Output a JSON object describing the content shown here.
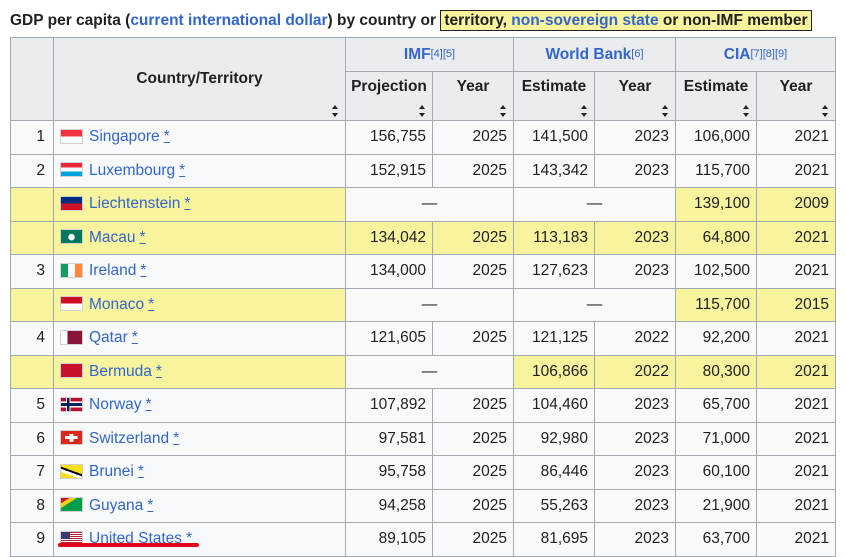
{
  "caption": {
    "prefix": "GDP per capita (",
    "link1": "current international dollar",
    "mid": ") by country or ",
    "box_text1": "territory, ",
    "box_link": "non-sovereign state",
    "box_text2": " or non-IMF member"
  },
  "headers": {
    "country": "Country/Territory",
    "imf": "IMF",
    "imf_refs": "[4][5]",
    "wb": "World Bank",
    "wb_refs": "[6]",
    "cia": "CIA",
    "cia_refs": "[7][8][9]",
    "projection": "Projection",
    "estimate": "Estimate",
    "year": "Year"
  },
  "colors": {
    "territory_highlight": "#f8f39d",
    "link": "#3366cc",
    "header_bg": "#eaecf0",
    "annotation_underline": "#e3001b"
  },
  "rows": [
    {
      "rank": "1",
      "country": "Singapore",
      "flag": "singapore-flag",
      "imf": "156,755",
      "imf_year": "2025",
      "wb": "141,500",
      "wb_year": "2023",
      "cia": "106,000",
      "cia_year": "2021"
    },
    {
      "rank": "2",
      "country": "Luxembourg",
      "flag": "luxembourg-flag",
      "imf": "152,915",
      "imf_year": "2025",
      "wb": "143,342",
      "wb_year": "2023",
      "cia": "115,700",
      "cia_year": "2021"
    },
    {
      "rank": "",
      "country": "Liechtenstein",
      "flag": "liechtenstein-flag",
      "imf": "—",
      "imf_year": "",
      "wb": "—",
      "wb_year": "",
      "cia": "139,100",
      "cia_year": "2009"
    },
    {
      "rank": "",
      "country": "Macau",
      "flag": "macau-flag",
      "imf": "134,042",
      "imf_year": "2025",
      "wb": "113,183",
      "wb_year": "2023",
      "cia": "64,800",
      "cia_year": "2021"
    },
    {
      "rank": "3",
      "country": "Ireland",
      "flag": "ireland-flag",
      "imf": "134,000",
      "imf_year": "2025",
      "wb": "127,623",
      "wb_year": "2023",
      "cia": "102,500",
      "cia_year": "2021"
    },
    {
      "rank": "",
      "country": "Monaco",
      "flag": "monaco-flag",
      "imf": "—",
      "imf_year": "",
      "wb": "—",
      "wb_year": "",
      "cia": "115,700",
      "cia_year": "2015"
    },
    {
      "rank": "4",
      "country": "Qatar",
      "flag": "qatar-flag",
      "imf": "121,605",
      "imf_year": "2025",
      "wb": "121,125",
      "wb_year": "2022",
      "cia": "92,200",
      "cia_year": "2021"
    },
    {
      "rank": "",
      "country": "Bermuda",
      "flag": "bermuda-flag",
      "imf": "—",
      "imf_year": "",
      "wb": "106,866",
      "wb_year": "2022",
      "cia": "80,300",
      "cia_year": "2021"
    },
    {
      "rank": "5",
      "country": "Norway",
      "flag": "norway-flag",
      "imf": "107,892",
      "imf_year": "2025",
      "wb": "104,460",
      "wb_year": "2023",
      "cia": "65,700",
      "cia_year": "2021"
    },
    {
      "rank": "6",
      "country": "Switzerland",
      "flag": "switzerland-flag",
      "imf": "97,581",
      "imf_year": "2025",
      "wb": "92,980",
      "wb_year": "2023",
      "cia": "71,000",
      "cia_year": "2021"
    },
    {
      "rank": "7",
      "country": "Brunei",
      "flag": "brunei-flag",
      "imf": "95,758",
      "imf_year": "2025",
      "wb": "86,446",
      "wb_year": "2023",
      "cia": "60,100",
      "cia_year": "2021"
    },
    {
      "rank": "8",
      "country": "Guyana",
      "flag": "guyana-flag",
      "imf": "94,258",
      "imf_year": "2025",
      "wb": "55,263",
      "wb_year": "2023",
      "cia": "21,900",
      "cia_year": "2021"
    },
    {
      "rank": "9",
      "country": "United States",
      "flag": "united-states-flag",
      "imf": "89,105",
      "imf_year": "2025",
      "wb": "81,695",
      "wb_year": "2023",
      "cia": "63,700",
      "cia_year": "2021"
    }
  ]
}
